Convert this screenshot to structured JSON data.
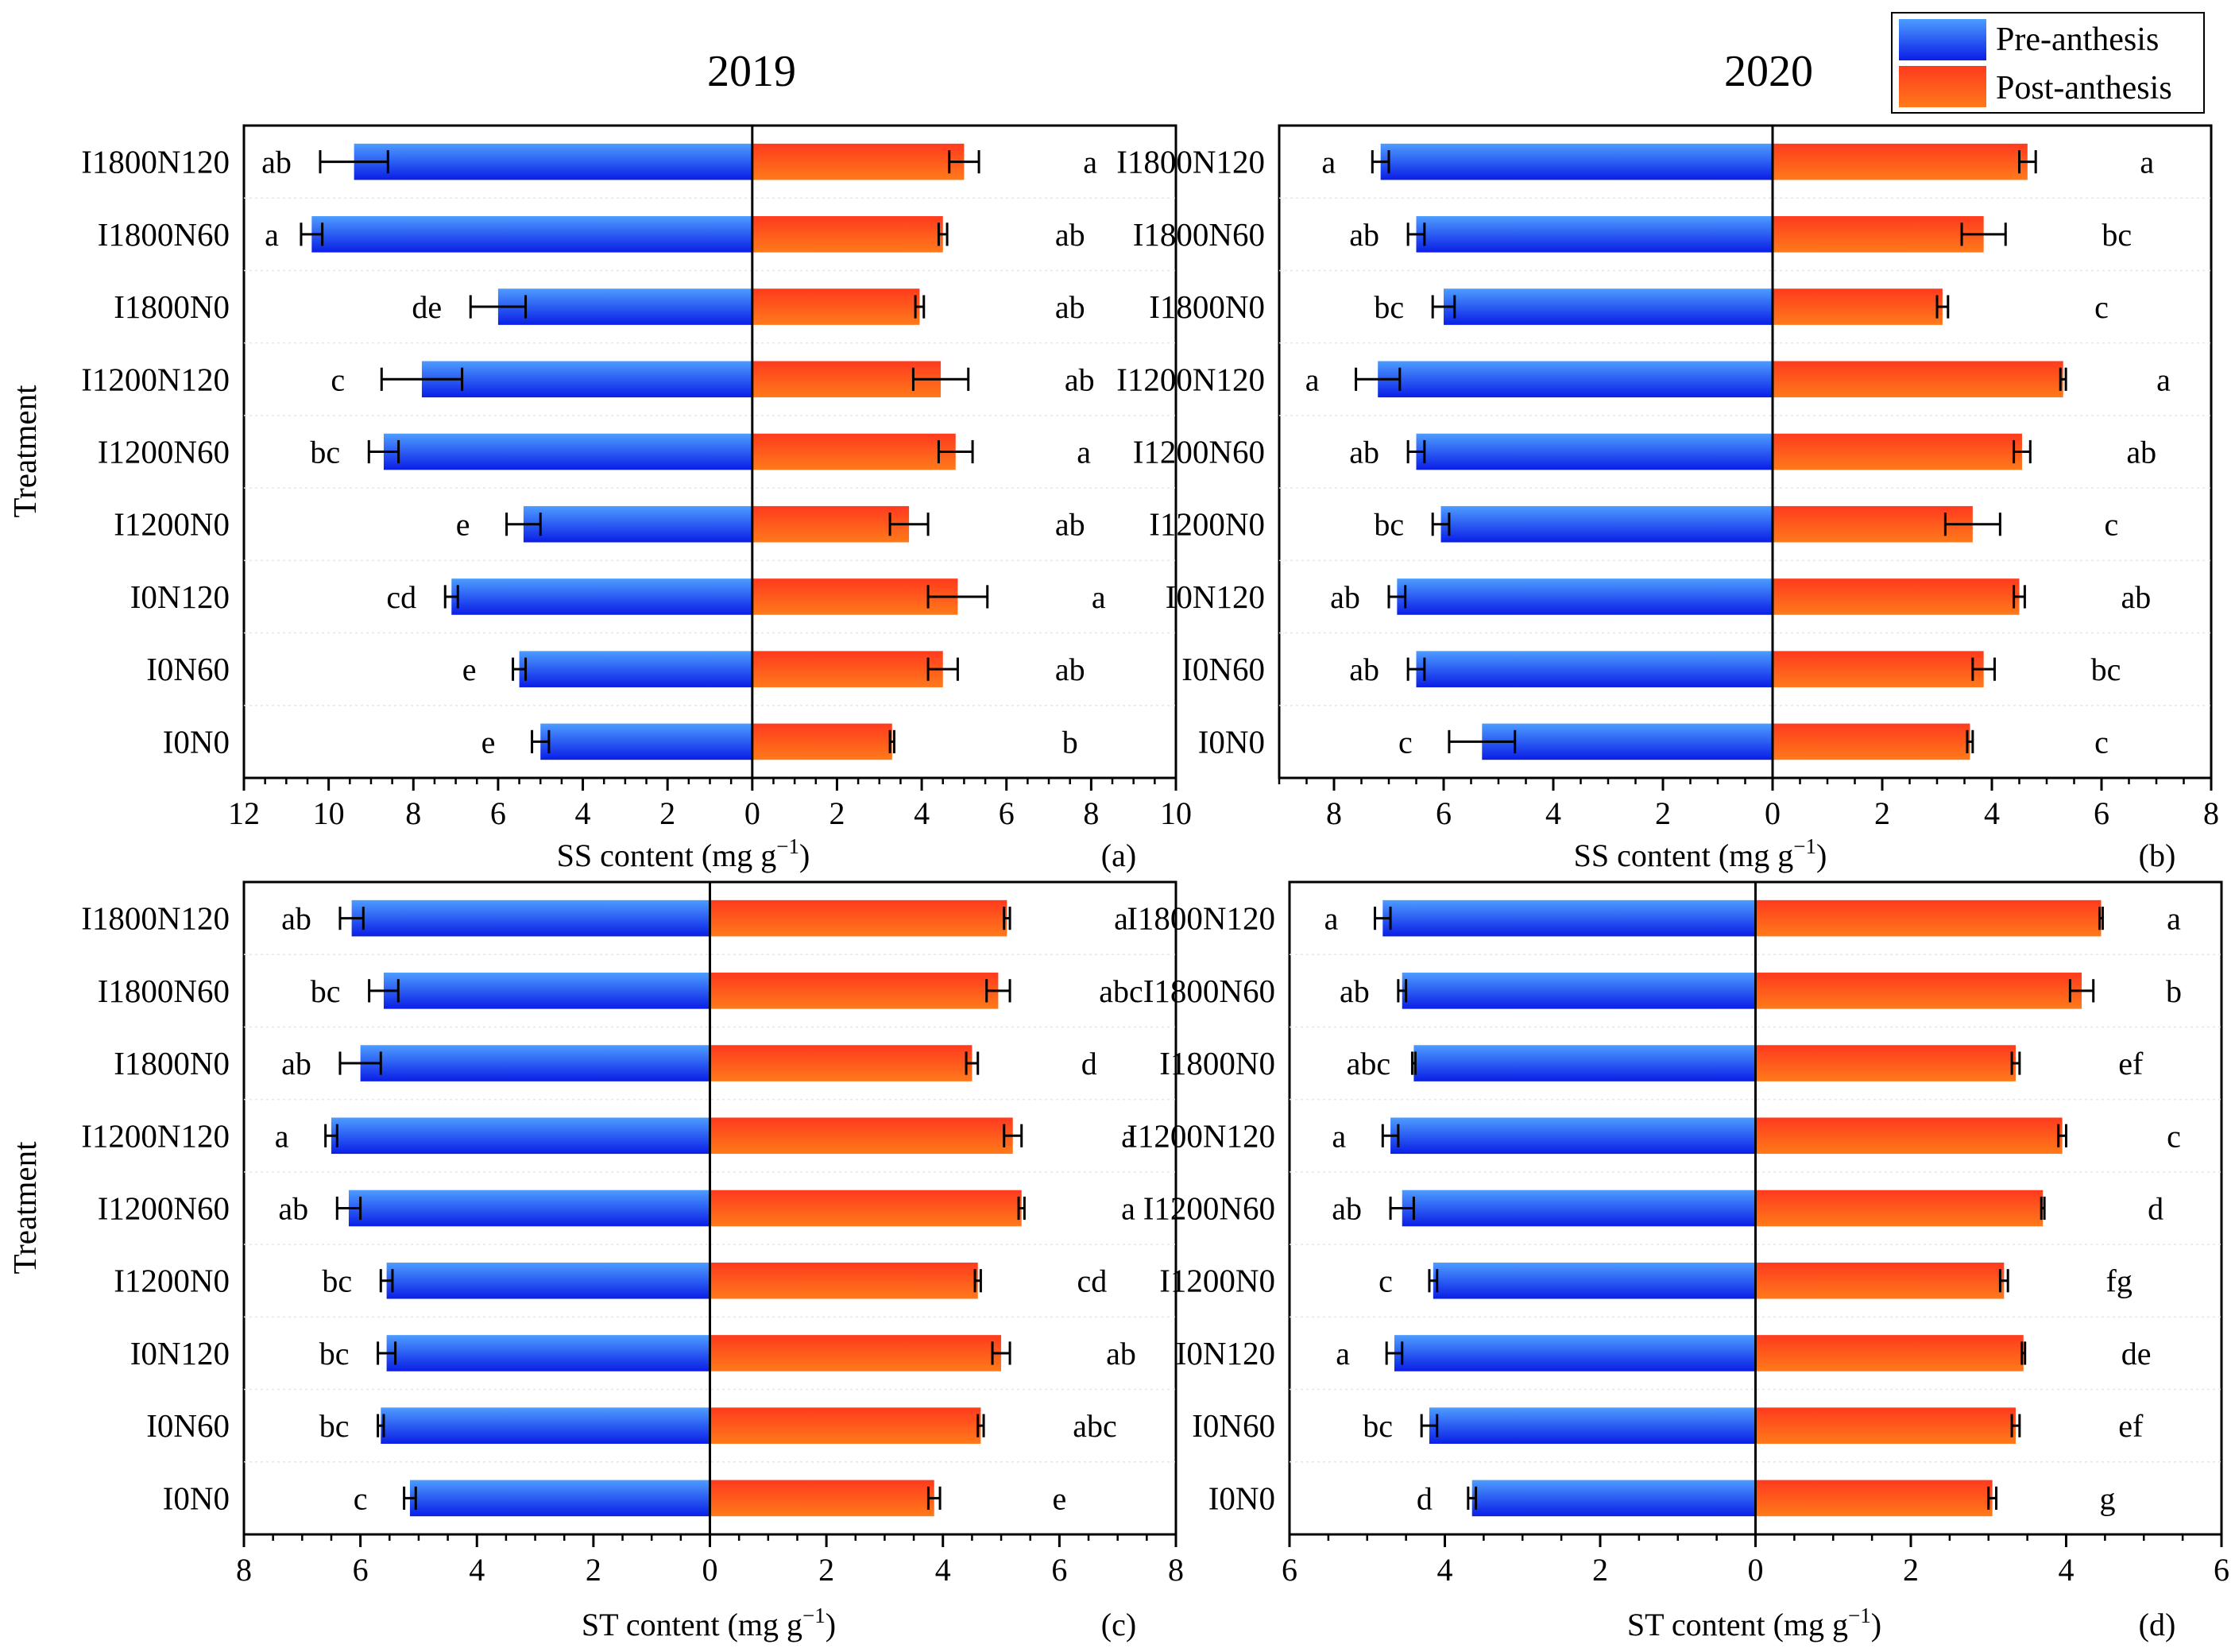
{
  "legend": {
    "items": [
      {
        "label": "Pre-anthesis",
        "color_top": "#4d9cff",
        "color_bottom": "#0a1ee6"
      },
      {
        "label": "Post-anthesis",
        "color_top": "#ff3a1e",
        "color_bottom": "#ff7a1a"
      }
    ]
  },
  "year_titles": [
    "2019",
    "2020"
  ],
  "chart_data": [
    {
      "type": "bar",
      "panel": "(a)",
      "orientation": "horizontal-diverging",
      "xlabel_main": "SS content (mg g",
      "xlabel_sup": "−1",
      "xlabel_tail": ")",
      "ylabel": "Treatment",
      "xlim_left": 12,
      "xlim_right": 10,
      "ticks_left": [
        12,
        10,
        8,
        6,
        4,
        2,
        0
      ],
      "ticks_right": [
        2,
        4,
        6,
        8,
        10
      ],
      "categories": [
        "I1800N120",
        "I1800N60",
        "I1800N0",
        "I1200N120",
        "I1200N60",
        "I1200N0",
        "I0N120",
        "I0N60",
        "I0N0"
      ],
      "series": [
        {
          "name": "Pre-anthesis",
          "values": [
            9.4,
            10.4,
            6.0,
            7.8,
            8.7,
            5.4,
            7.1,
            5.5,
            5.0
          ],
          "errors": [
            0.8,
            0.25,
            0.65,
            0.95,
            0.35,
            0.4,
            0.15,
            0.15,
            0.2
          ],
          "letters": [
            "ab",
            "a",
            "de",
            "c",
            "bc",
            "e",
            "cd",
            "e",
            "e"
          ]
        },
        {
          "name": "Post-anthesis",
          "values": [
            5.0,
            4.5,
            3.95,
            4.45,
            4.8,
            3.7,
            4.85,
            4.5,
            3.3
          ],
          "errors": [
            0.35,
            0.1,
            0.1,
            0.65,
            0.4,
            0.45,
            0.7,
            0.35,
            0.05
          ],
          "letters": [
            "a",
            "ab",
            "ab",
            "ab",
            "a",
            "ab",
            "a",
            "ab",
            "b"
          ]
        }
      ]
    },
    {
      "type": "bar",
      "panel": "(b)",
      "orientation": "horizontal-diverging",
      "xlabel_main": "SS content (mg g",
      "xlabel_sup": "−1",
      "xlabel_tail": ")",
      "ylabel": "",
      "xlim_left": 9,
      "xlim_right": 8,
      "ticks_left": [
        8,
        6,
        4,
        2,
        0
      ],
      "ticks_right": [
        2,
        4,
        6,
        8
      ],
      "categories": [
        "I1800N120",
        "I1800N60",
        "I1800N0",
        "I1200N120",
        "I1200N60",
        "I1200N0",
        "I0N120",
        "I0N60",
        "I0N0"
      ],
      "series": [
        {
          "name": "Pre-anthesis",
          "values": [
            7.15,
            6.5,
            6.0,
            7.2,
            6.5,
            6.05,
            6.85,
            6.5,
            5.3
          ],
          "errors": [
            0.15,
            0.15,
            0.2,
            0.4,
            0.15,
            0.15,
            0.15,
            0.15,
            0.6
          ],
          "letters": [
            "a",
            "ab",
            "bc",
            "a",
            "ab",
            "bc",
            "ab",
            "ab",
            "c"
          ]
        },
        {
          "name": "Post-anthesis",
          "values": [
            4.65,
            3.85,
            3.1,
            5.3,
            4.55,
            3.65,
            4.5,
            3.85,
            3.6
          ],
          "errors": [
            0.15,
            0.4,
            0.1,
            0.05,
            0.15,
            0.5,
            0.1,
            0.2,
            0.05
          ],
          "letters": [
            "a",
            "bc",
            "c",
            "a",
            "ab",
            "c",
            "ab",
            "bc",
            "c"
          ]
        }
      ]
    },
    {
      "type": "bar",
      "panel": "(c)",
      "orientation": "horizontal-diverging",
      "xlabel_main": "ST content (mg g",
      "xlabel_sup": "−1",
      "xlabel_tail": ")",
      "ylabel": "Treatment",
      "xlim_left": 8,
      "xlim_right": 8,
      "ticks_left": [
        8,
        6,
        4,
        2,
        0
      ],
      "ticks_right": [
        2,
        4,
        6,
        8
      ],
      "categories": [
        "I1800N120",
        "I1800N60",
        "I1800N0",
        "I1200N120",
        "I1200N60",
        "I1200N0",
        "I0N120",
        "I0N60",
        "I0N0"
      ],
      "series": [
        {
          "name": "Pre-anthesis",
          "values": [
            6.15,
            5.6,
            6.0,
            6.5,
            6.2,
            5.55,
            5.55,
            5.65,
            5.15
          ],
          "errors": [
            0.2,
            0.25,
            0.35,
            0.1,
            0.2,
            0.1,
            0.15,
            0.05,
            0.1
          ],
          "letters": [
            "ab",
            "bc",
            "ab",
            "a",
            "ab",
            "bc",
            "bc",
            "bc",
            "c"
          ]
        },
        {
          "name": "Post-anthesis",
          "values": [
            5.1,
            4.95,
            4.5,
            5.2,
            5.35,
            4.6,
            5.0,
            4.65,
            3.85
          ],
          "errors": [
            0.05,
            0.2,
            0.1,
            0.15,
            0.05,
            0.05,
            0.15,
            0.05,
            0.1
          ],
          "letters": [
            "a",
            "abc",
            "d",
            "a",
            "a",
            "cd",
            "ab",
            "abc",
            "e"
          ]
        }
      ]
    },
    {
      "type": "bar",
      "panel": "(d)",
      "orientation": "horizontal-diverging",
      "xlabel_main": "ST content (mg g",
      "xlabel_sup": "−1",
      "xlabel_tail": ")",
      "ylabel": "",
      "xlim_left": 6,
      "xlim_right": 6,
      "ticks_left": [
        6,
        4,
        2,
        0
      ],
      "ticks_right": [
        2,
        4,
        6
      ],
      "categories": [
        "I1800N120",
        "I1800N60",
        "I1800N0",
        "I1200N120",
        "I1200N60",
        "I1200N0",
        "I0N120",
        "I0N60",
        "I0N0"
      ],
      "series": [
        {
          "name": "Pre-anthesis",
          "values": [
            4.8,
            4.55,
            4.4,
            4.7,
            4.55,
            4.15,
            4.65,
            4.2,
            3.65
          ],
          "errors": [
            0.1,
            0.05,
            0.02,
            0.1,
            0.15,
            0.05,
            0.1,
            0.1,
            0.05
          ],
          "letters": [
            "a",
            "ab",
            "abc",
            "a",
            "ab",
            "c",
            "a",
            "bc",
            "d"
          ]
        },
        {
          "name": "Post-anthesis",
          "values": [
            4.45,
            4.2,
            3.35,
            3.95,
            3.7,
            3.2,
            3.45,
            3.35,
            3.05
          ],
          "errors": [
            0.02,
            0.15,
            0.05,
            0.05,
            0.02,
            0.05,
            0.02,
            0.05,
            0.05
          ],
          "letters": [
            "a",
            "b",
            "ef",
            "c",
            "d",
            "fg",
            "de",
            "ef",
            "g"
          ]
        }
      ]
    }
  ]
}
